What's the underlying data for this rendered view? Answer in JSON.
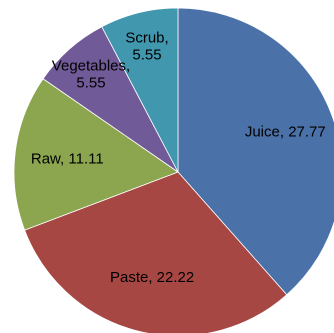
{
  "chart_data": {
    "type": "pie",
    "title": "",
    "start_angle_deg": 90,
    "direction": "clockwise",
    "slices": [
      {
        "label": "Juice",
        "value": 27.77,
        "color": "#4a72a8",
        "label_text": "Juice, 27.77",
        "label_lines": [
          "Juice, 27.77"
        ]
      },
      {
        "label": "Paste",
        "value": 22.22,
        "color": "#a74743",
        "label_text": "Paste, 22.22",
        "label_lines": [
          "Paste, 22.22"
        ]
      },
      {
        "label": "Raw",
        "value": 11.11,
        "color": "#8ca650",
        "label_text": "Raw, 11.11",
        "label_lines": [
          "Raw, 11.11"
        ]
      },
      {
        "label": "Vegetables",
        "value": 5.55,
        "color": "#715a98",
        "label_text": "Vegetables, 5.55",
        "label_lines": [
          "Vegetables,",
          "5.55"
        ]
      },
      {
        "label": "Scrub",
        "value": 5.55,
        "color": "#4097ae",
        "label_text": "Scrub, 5.55",
        "label_lines": [
          "Scrub,",
          "5.55"
        ]
      }
    ]
  }
}
